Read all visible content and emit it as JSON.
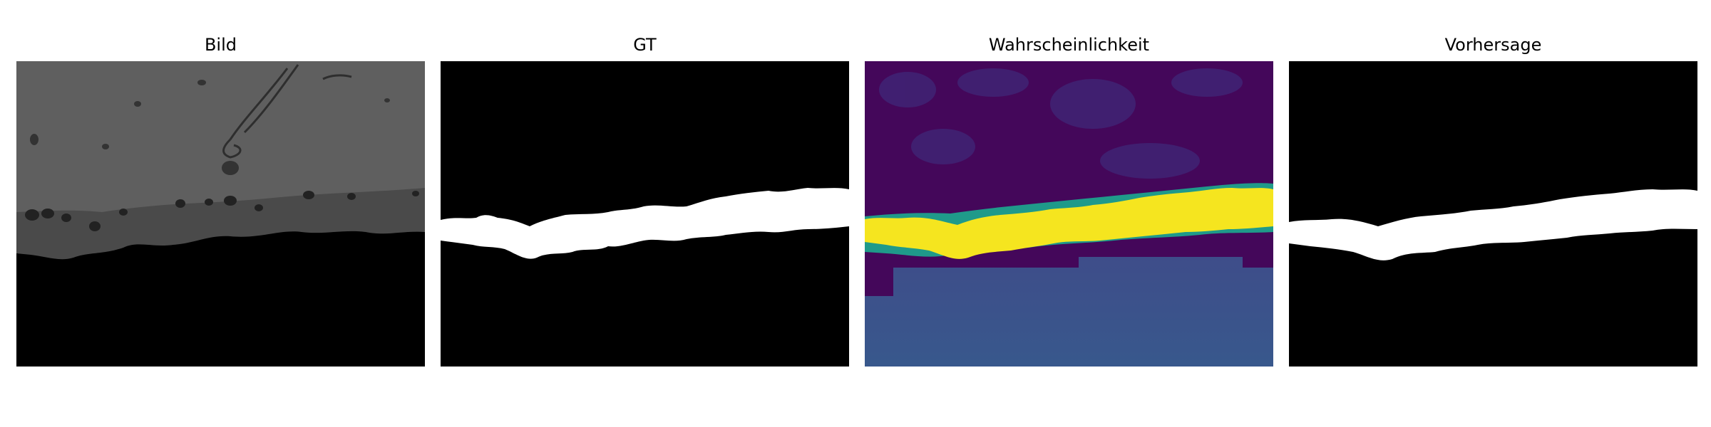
{
  "panels": [
    {
      "title": "Bild"
    },
    {
      "title": "GT"
    },
    {
      "title": "Wahrscheinlichkeit"
    },
    {
      "title": "Vorhersage"
    }
  ],
  "colors": {
    "background": "#ffffff",
    "image_upper": "#5e5e5e",
    "image_band": "#4a4a4a",
    "black": "#000000",
    "mask_white": "#ffffff",
    "prob_low": "#44075a",
    "prob_high": "#f5e51f",
    "prob_mid": "#1f9a8a",
    "prob_pad": "#3b528b"
  }
}
